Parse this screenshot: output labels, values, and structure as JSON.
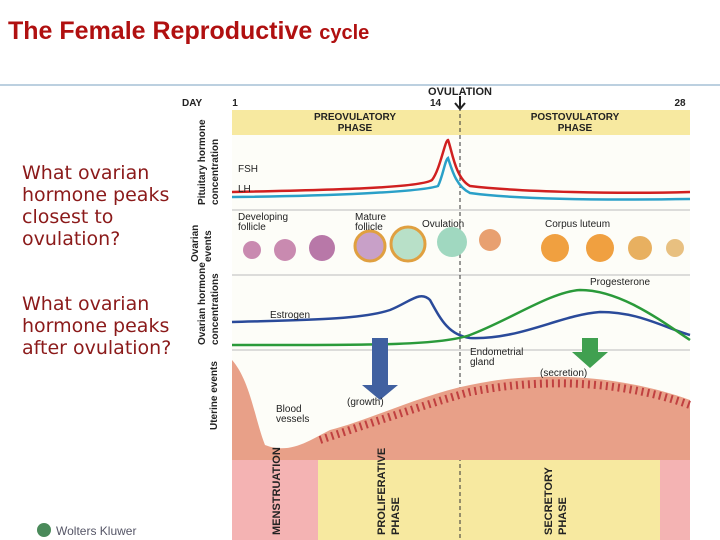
{
  "header": {
    "title": "The Female Reproductive",
    "title_suffix": "cycle"
  },
  "questions": [
    "What ovarian hormone peaks closest to ovulation?",
    "What ovarian hormone peaks after ovulation?"
  ],
  "diagram": {
    "ovulation": "OVULATION",
    "day": "DAY",
    "day_start": "1",
    "day_mid": "14",
    "day_end": "28",
    "preovulatory": [
      "PREOVULATORY",
      "PHASE"
    ],
    "postovulatory": [
      "POSTOVULATORY",
      "PHASE"
    ],
    "pituitary_axis": [
      "Pituitary hormone",
      "concentration"
    ],
    "fsh": "FSH",
    "lh": "LH",
    "ovarian_events_axis": [
      "Ovarian",
      "events"
    ],
    "developing": [
      "Developing",
      "follicle"
    ],
    "mature": [
      "Mature",
      "follicle"
    ],
    "ovulation_event": "Ovulation",
    "corpus": "Corpus luteum",
    "hormone_axis": [
      "Ovarian hormone",
      "concentrations"
    ],
    "estrogen": "Estrogen",
    "progesterone": "Progesterone",
    "uterine_axis": "Uterine events",
    "endometrial": [
      "Endometrial",
      "gland"
    ],
    "secretion": "(secretion)",
    "growth": "(growth)",
    "blood": [
      "Blood",
      "vessels"
    ],
    "menstruation": "MENSTRUATION",
    "proliferative": [
      "PROLIFERATIVE",
      "PHASE"
    ],
    "secretory": [
      "SECRETORY",
      "PHASE"
    ]
  },
  "footer": {
    "logo": "Wolters Kluwer"
  }
}
